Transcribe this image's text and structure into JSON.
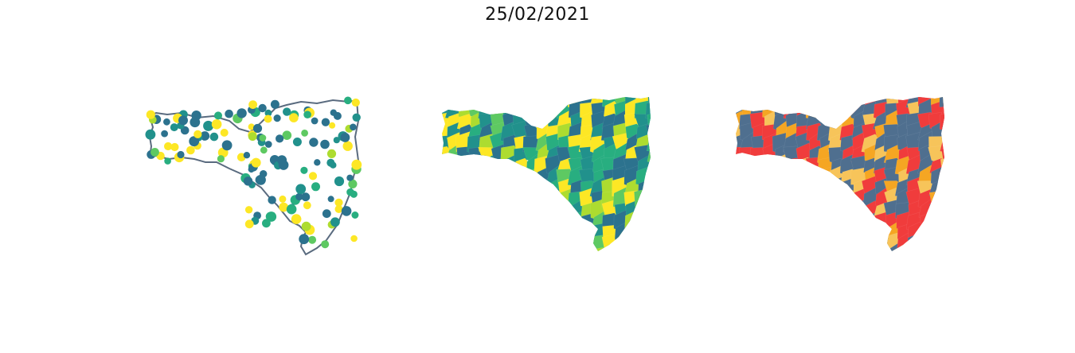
{
  "title": "25/02/2021",
  "panels": [
    {
      "id": "points",
      "style": "points-on-outline",
      "outline_color": "#5a6b7f"
    },
    {
      "id": "choropleth-viridis",
      "style": "choropleth"
    },
    {
      "id": "choropleth-categorical",
      "style": "choropleth"
    }
  ],
  "colors": {
    "viridis": [
      "#440154",
      "#3b528b",
      "#2c728e",
      "#21918c",
      "#28ae80",
      "#5ec962",
      "#addc30",
      "#fde725"
    ],
    "categorical": [
      "#f03c3c",
      "#f5a623",
      "#f7c45a",
      "#4f6f8f"
    ]
  }
}
